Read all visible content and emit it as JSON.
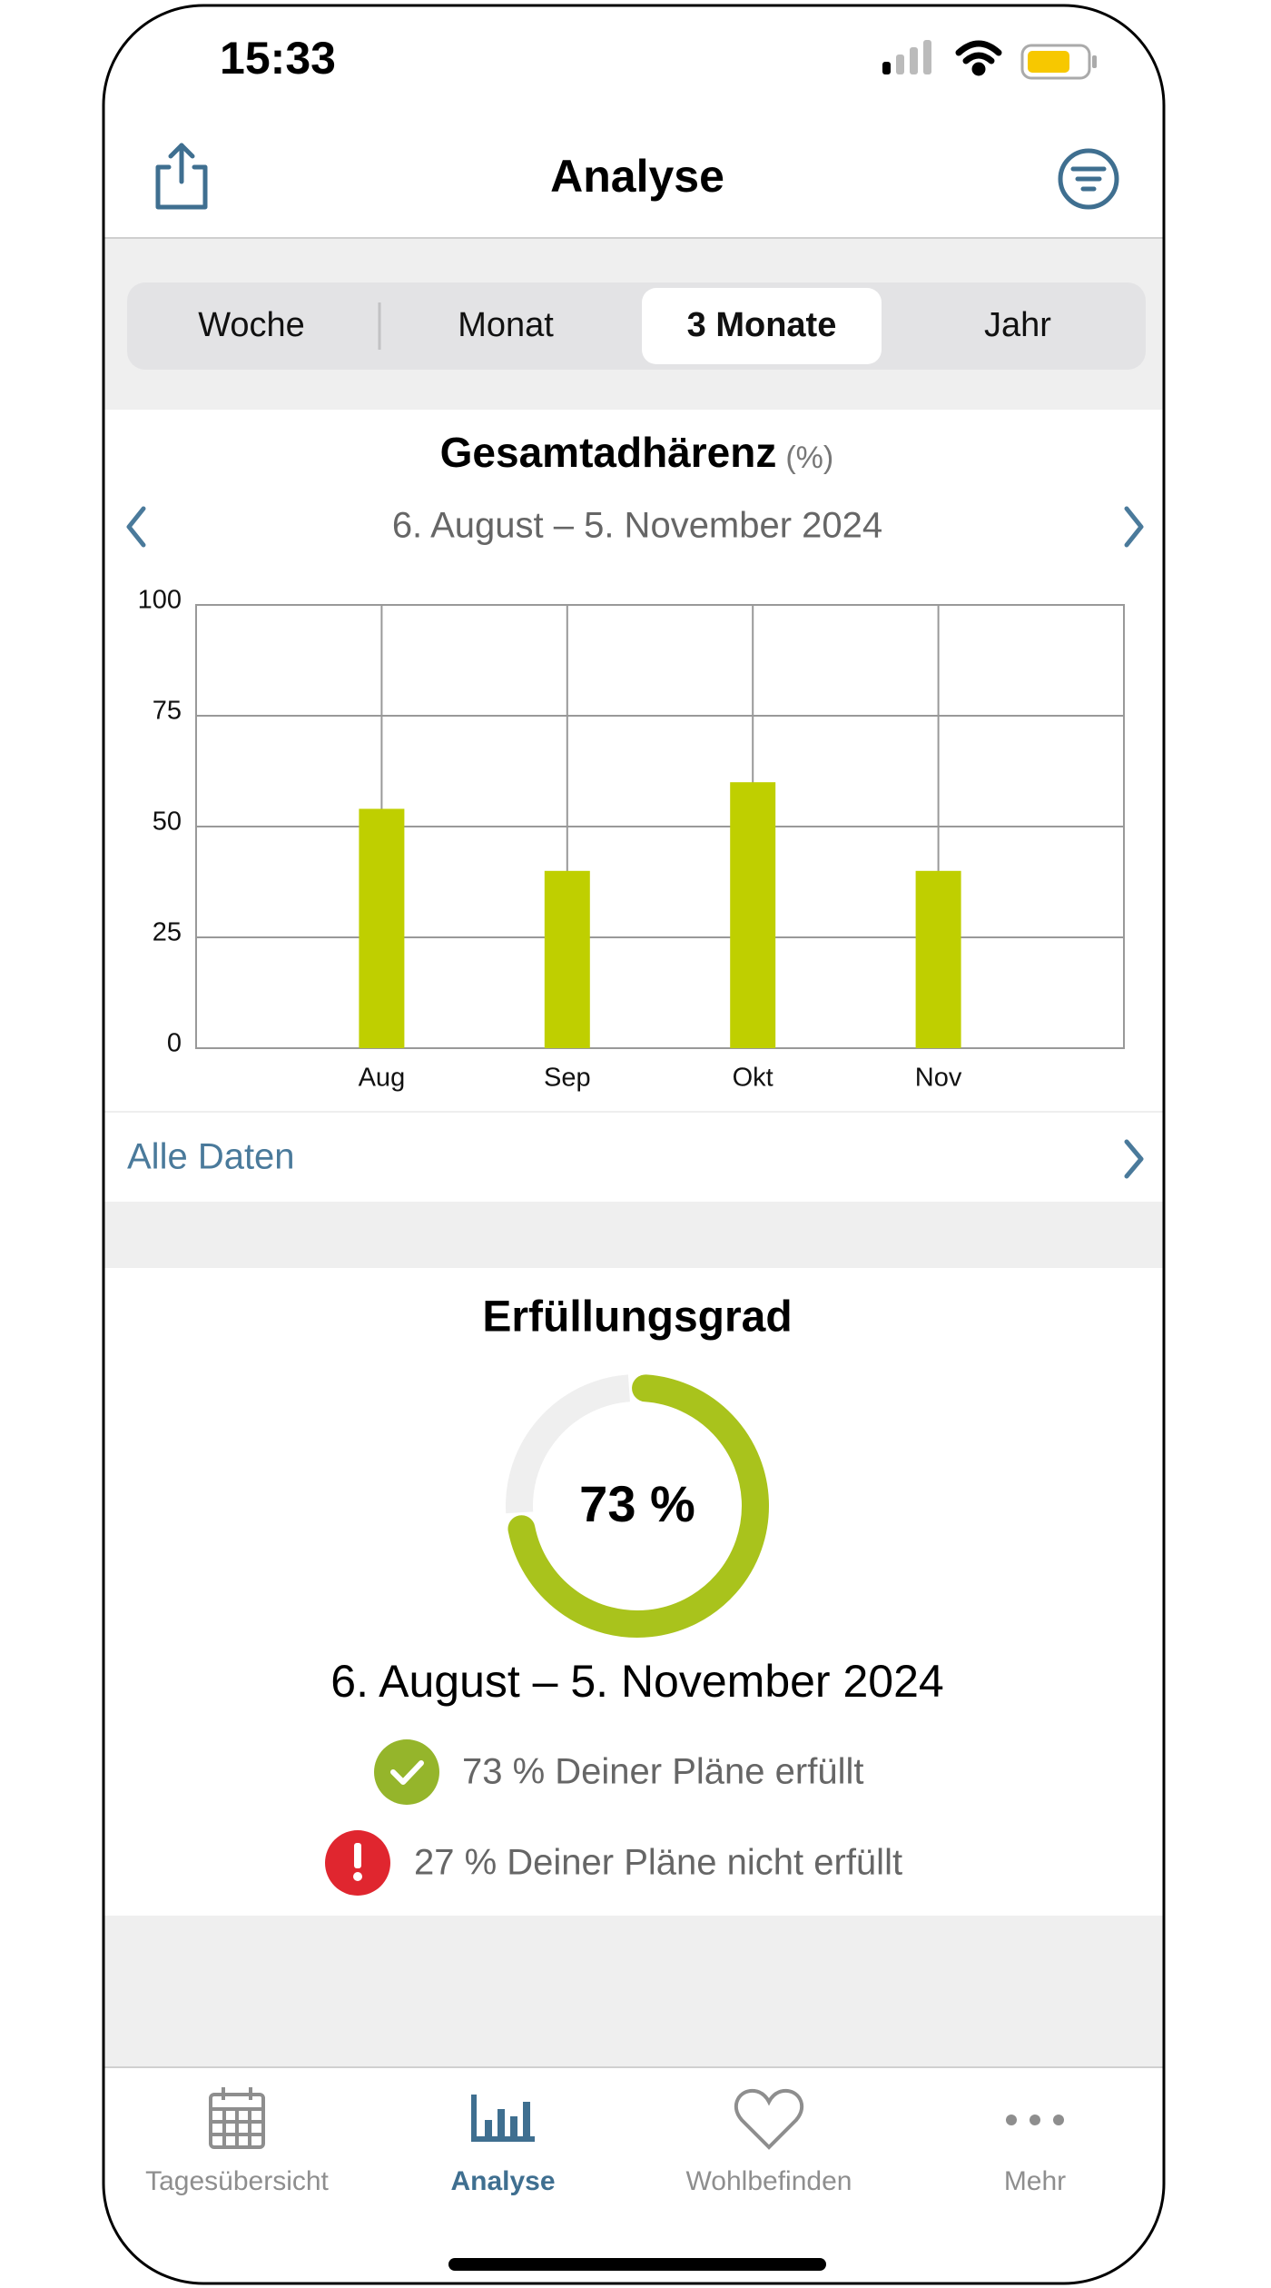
{
  "status_bar": {
    "time": "15:33"
  },
  "header": {
    "title": "Analyse"
  },
  "segments": {
    "items": [
      "Woche",
      "Monat",
      "3 Monate",
      "Jahr"
    ],
    "selected": 2
  },
  "chart_data": [
    {
      "type": "bar",
      "title": "Gesamtadhärenz",
      "unit": "(%)",
      "subtitle": "6. August – 5. November 2024",
      "categories": [
        "Aug",
        "Sep",
        "Okt",
        "Nov"
      ],
      "values": [
        54,
        40,
        60,
        40
      ],
      "color": "#bfcf00",
      "ylim": [
        0,
        100
      ],
      "yticks": [
        0,
        25,
        50,
        75,
        100
      ],
      "grid": true
    },
    {
      "type": "donut",
      "title": "Erfüllungsgrad",
      "center_label": "73 %",
      "subtitle": "6. August – 5. November 2024",
      "categories": [
        "73 % Deiner Pläne erfüllt",
        "27 % Deiner Pläne nicht erfüllt"
      ],
      "values": [
        73,
        27
      ],
      "colors": [
        "#a9c31c",
        "#efefef"
      ]
    }
  ],
  "link": "Alle Daten",
  "tabs": {
    "items": [
      "Tagesübersicht",
      "Analyse",
      "Wohlbefinden",
      "Mehr"
    ],
    "selected": 1
  }
}
